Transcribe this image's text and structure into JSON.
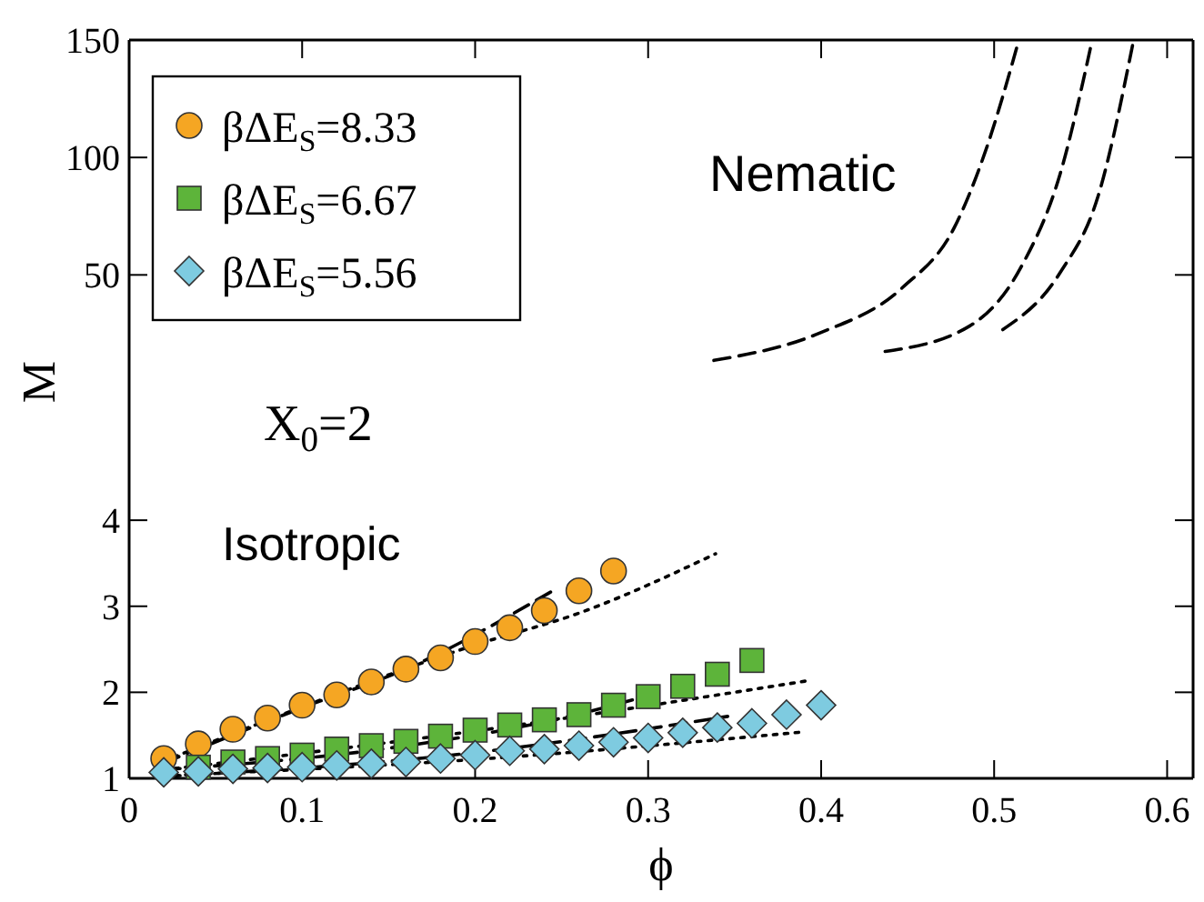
{
  "chart_data": [
    {
      "type": "line",
      "xlim": [
        0,
        0.615
      ],
      "xticks": [
        0,
        0.1,
        0.2,
        0.3,
        0.4,
        0.5,
        0.6
      ],
      "ylim": [
        6,
        150
      ],
      "yticks": [
        50,
        100,
        150
      ],
      "tick_labels": "y",
      "grid": false,
      "marker": "none",
      "annotations": [
        "Nematic"
      ],
      "series": [
        {
          "color": "#000000",
          "line_style": "dashed",
          "x": [
            0.338,
            0.399,
            0.447,
            0.477,
            0.495,
            0.514
          ],
          "values": [
            13.6,
            25.2,
            44.6,
            70.2,
            102.7,
            149.2
          ]
        },
        {
          "color": "#000000",
          "line_style": "dashed",
          "x": [
            0.437,
            0.486,
            0.516,
            0.538,
            0.556
          ],
          "values": [
            17.4,
            28.3,
            53.9,
            92.6,
            147.7
          ]
        },
        {
          "color": "#000000",
          "line_style": "dashed",
          "x": [
            0.505,
            0.538,
            0.56,
            0.58
          ],
          "values": [
            26.7,
            50.8,
            83.3,
            147.7
          ]
        }
      ]
    },
    {
      "type": "scatter",
      "xlim": [
        0,
        0.615
      ],
      "xticks": [
        0,
        0.1,
        0.2,
        0.3,
        0.4,
        0.5,
        0.6
      ],
      "ylim": [
        1,
        5.65
      ],
      "yticks": [
        1,
        2,
        3,
        4
      ],
      "xlabel": "ϕ",
      "ylabel": "M",
      "grid": false,
      "legend": "top left",
      "annotations": [
        "X$_{0}$=2",
        "Isotropic"
      ],
      "series": [
        {
          "name": "βΔE$_{S}$=8.33",
          "color": "#f5a623",
          "marker": "circle",
          "x": [
            0.02,
            0.04,
            0.06,
            0.08,
            0.1,
            0.12,
            0.14,
            0.16,
            0.18,
            0.2,
            0.22,
            0.24,
            0.26,
            0.28
          ],
          "values": [
            1.23,
            1.4,
            1.57,
            1.7,
            1.85,
            1.97,
            2.12,
            2.27,
            2.4,
            2.59,
            2.75,
            2.95,
            3.18,
            3.41
          ]
        },
        {
          "name": "βΔE$_{S}$=6.67",
          "color": "#5db43a",
          "marker": "square",
          "x": [
            0.04,
            0.06,
            0.08,
            0.1,
            0.12,
            0.14,
            0.16,
            0.18,
            0.2,
            0.22,
            0.24,
            0.26,
            0.28,
            0.3,
            0.32,
            0.34,
            0.36
          ],
          "values": [
            1.13,
            1.19,
            1.23,
            1.27,
            1.34,
            1.38,
            1.43,
            1.49,
            1.56,
            1.62,
            1.68,
            1.74,
            1.85,
            1.95,
            2.07,
            2.21,
            2.37
          ]
        },
        {
          "name": "βΔE$_{S}$=5.56",
          "color": "#7ecbe0",
          "marker": "diamond",
          "x": [
            0.02,
            0.04,
            0.06,
            0.08,
            0.1,
            0.12,
            0.14,
            0.16,
            0.18,
            0.2,
            0.22,
            0.24,
            0.26,
            0.28,
            0.3,
            0.32,
            0.34,
            0.36,
            0.38,
            0.4
          ],
          "values": [
            1.07,
            1.08,
            1.11,
            1.12,
            1.13,
            1.15,
            1.17,
            1.19,
            1.23,
            1.27,
            1.32,
            1.34,
            1.38,
            1.42,
            1.47,
            1.53,
            1.59,
            1.64,
            1.74,
            1.85
          ]
        },
        {
          "type": "line",
          "color": "#000000",
          "line_style": "dashed",
          "marker": "none",
          "x": [
            0.02,
            0.1,
            0.16,
            0.244
          ],
          "values": [
            1.18,
            1.82,
            2.27,
            3.17
          ]
        },
        {
          "type": "line",
          "color": "#000000",
          "line_style": "dotted",
          "marker": "none",
          "x": [
            0.02,
            0.1,
            0.2,
            0.26,
            0.339
          ],
          "values": [
            1.2,
            1.83,
            2.55,
            2.92,
            3.61
          ]
        },
        {
          "type": "line",
          "color": "#000000",
          "line_style": "dashed",
          "marker": "none",
          "x": [
            0.02,
            0.15,
            0.25,
            0.307
          ],
          "values": [
            1.1,
            1.35,
            1.7,
            2.0
          ]
        },
        {
          "type": "line",
          "color": "#000000",
          "line_style": "dotted",
          "marker": "none",
          "x": [
            0.02,
            0.2,
            0.394
          ],
          "values": [
            1.1,
            1.55,
            2.14
          ]
        },
        {
          "type": "line",
          "color": "#000000",
          "line_style": "dashed",
          "marker": "none",
          "x": [
            0.02,
            0.2,
            0.346
          ],
          "values": [
            1.02,
            1.3,
            1.72
          ]
        },
        {
          "type": "line",
          "color": "#000000",
          "line_style": "dotted",
          "marker": "none",
          "x": [
            0.02,
            0.2,
            0.39
          ],
          "values": [
            1.03,
            1.22,
            1.54
          ]
        }
      ]
    }
  ]
}
